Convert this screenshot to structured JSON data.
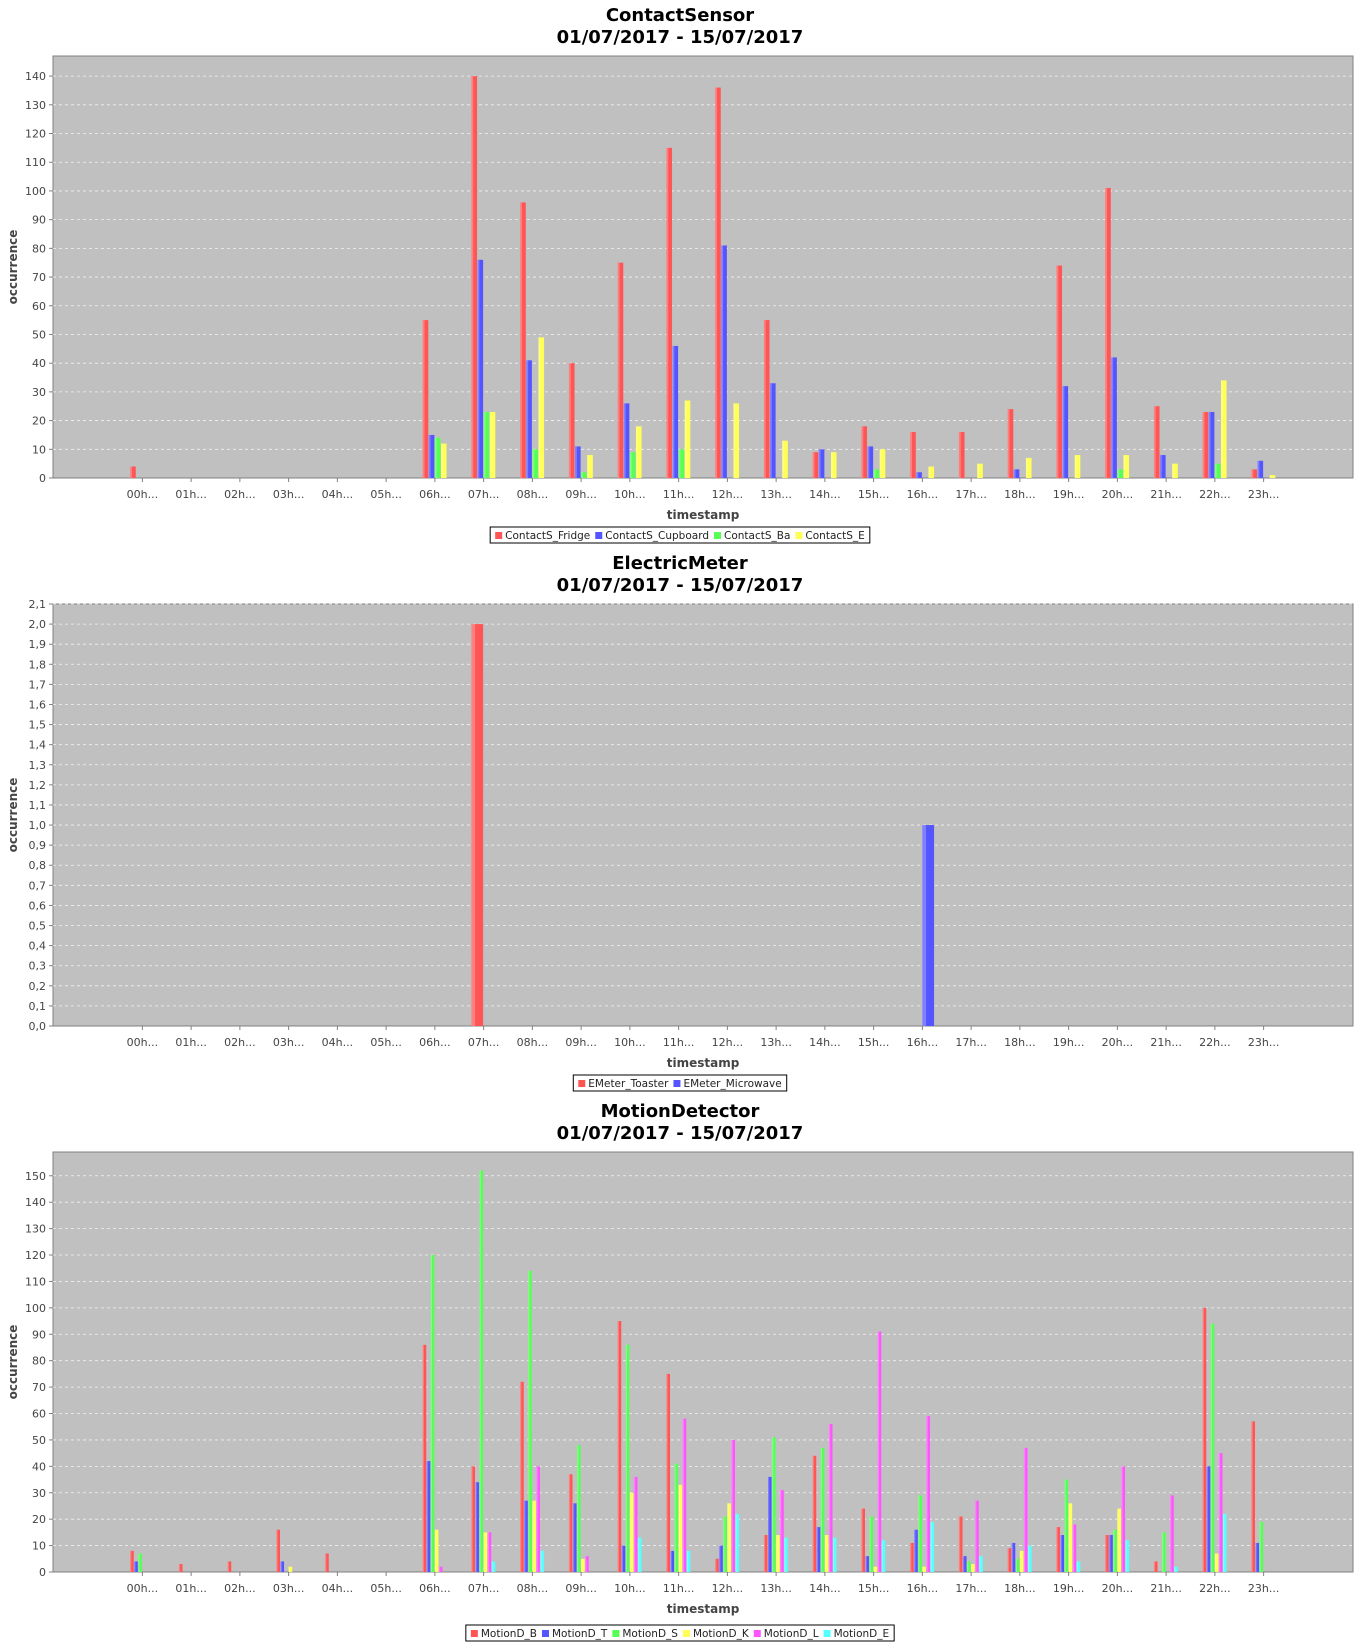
{
  "chart_data": [
    {
      "type": "bar",
      "title": "ContactSensor",
      "subtitle": "01/07/2017 - 15/07/2017",
      "xlabel": "timestamp",
      "ylabel": "occurrence",
      "ylim": [
        0,
        147
      ],
      "yticks": [
        0,
        10,
        20,
        30,
        40,
        50,
        60,
        70,
        80,
        90,
        100,
        110,
        120,
        130,
        140
      ],
      "ytick_labels": [
        "0",
        "10",
        "20",
        "30",
        "40",
        "50",
        "60",
        "70",
        "80",
        "90",
        "100",
        "110",
        "120",
        "130",
        "140"
      ],
      "grid": true,
      "legend_position": "bottom",
      "categories": [
        "00h...",
        "01h...",
        "02h...",
        "03h...",
        "04h...",
        "05h...",
        "06h...",
        "07h...",
        "08h...",
        "09h...",
        "10h...",
        "11h...",
        "12h...",
        "13h...",
        "14h...",
        "15h...",
        "16h...",
        "17h...",
        "18h...",
        "19h...",
        "20h...",
        "21h...",
        "22h...",
        "23h..."
      ],
      "series": [
        {
          "name": "ContactS_Fridge",
          "color": "#ff5555",
          "values": [
            4,
            0,
            0,
            0,
            0,
            0,
            55,
            140,
            96,
            40,
            75,
            115,
            136,
            55,
            9,
            18,
            16,
            16,
            24,
            74,
            101,
            25,
            23,
            3
          ]
        },
        {
          "name": "ContactS_Cupboard",
          "color": "#5555ff",
          "values": [
            0,
            0,
            0,
            0,
            0,
            0,
            15,
            76,
            41,
            11,
            26,
            46,
            81,
            33,
            10,
            11,
            2,
            0,
            3,
            32,
            42,
            8,
            23,
            6
          ]
        },
        {
          "name": "ContactS_Ba",
          "color": "#55ff55",
          "values": [
            0,
            0,
            0,
            0,
            0,
            0,
            14,
            23,
            10,
            2,
            9,
            10,
            0,
            0,
            0,
            3,
            0,
            0,
            0,
            0,
            3,
            0,
            5,
            0
          ]
        },
        {
          "name": "ContactS_E",
          "color": "#ffff55",
          "values": [
            0,
            0,
            0,
            0,
            0,
            0,
            12,
            23,
            49,
            8,
            18,
            27,
            26,
            13,
            9,
            10,
            4,
            5,
            7,
            8,
            8,
            5,
            34,
            1
          ]
        }
      ]
    },
    {
      "type": "bar",
      "title": "ElectricMeter",
      "subtitle": "01/07/2017 - 15/07/2017",
      "xlabel": "timestamp",
      "ylabel": "occurrence",
      "ylim": [
        0,
        2.1
      ],
      "yticks": [
        0,
        0.1,
        0.2,
        0.3,
        0.4,
        0.5,
        0.6,
        0.7,
        0.8,
        0.9,
        1.0,
        1.1,
        1.2,
        1.3,
        1.4,
        1.5,
        1.6,
        1.7,
        1.8,
        1.9,
        2.0,
        2.1
      ],
      "ytick_labels": [
        "0,0",
        "0,1",
        "0,2",
        "0,3",
        "0,4",
        "0,5",
        "0,6",
        "0,7",
        "0,8",
        "0,9",
        "1,0",
        "1,1",
        "1,2",
        "1,3",
        "1,4",
        "1,5",
        "1,6",
        "1,7",
        "1,8",
        "1,9",
        "2,0",
        "2,1"
      ],
      "grid": true,
      "legend_position": "bottom",
      "categories": [
        "00h...",
        "01h...",
        "02h...",
        "03h...",
        "04h...",
        "05h...",
        "06h...",
        "07h...",
        "08h...",
        "09h...",
        "10h...",
        "11h...",
        "12h...",
        "13h...",
        "14h...",
        "15h...",
        "16h...",
        "17h...",
        "18h...",
        "19h...",
        "20h...",
        "21h...",
        "22h...",
        "23h..."
      ],
      "series": [
        {
          "name": "EMeter_Toaster",
          "color": "#ff5555",
          "values": [
            0,
            0,
            0,
            0,
            0,
            0,
            0,
            2,
            0,
            0,
            0,
            0,
            0,
            0,
            0,
            0,
            0,
            0,
            0,
            0,
            0,
            0,
            0,
            0
          ]
        },
        {
          "name": "EMeter_Microwave",
          "color": "#5555ff",
          "values": [
            0,
            0,
            0,
            0,
            0,
            0,
            0,
            0,
            0,
            0,
            0,
            0,
            0,
            0,
            0,
            0,
            1,
            0,
            0,
            0,
            0,
            0,
            0,
            0
          ]
        }
      ]
    },
    {
      "type": "bar",
      "title": "MotionDetector",
      "subtitle": "01/07/2017 - 15/07/2017",
      "xlabel": "timestamp",
      "ylabel": "occurrence",
      "ylim": [
        0,
        159
      ],
      "yticks": [
        0,
        10,
        20,
        30,
        40,
        50,
        60,
        70,
        80,
        90,
        100,
        110,
        120,
        130,
        140,
        150
      ],
      "ytick_labels": [
        "0",
        "10",
        "20",
        "30",
        "40",
        "50",
        "60",
        "70",
        "80",
        "90",
        "100",
        "110",
        "120",
        "130",
        "140",
        "150"
      ],
      "grid": true,
      "legend_position": "bottom",
      "categories": [
        "00h...",
        "01h...",
        "02h...",
        "03h...",
        "04h...",
        "05h...",
        "06h...",
        "07h...",
        "08h...",
        "09h...",
        "10h...",
        "11h...",
        "12h...",
        "13h...",
        "14h...",
        "15h...",
        "16h...",
        "17h...",
        "18h...",
        "19h...",
        "20h...",
        "21h...",
        "22h...",
        "23h..."
      ],
      "series": [
        {
          "name": "MotionD_B",
          "color": "#ff5555",
          "values": [
            8,
            3,
            4,
            16,
            7,
            0,
            86,
            40,
            72,
            37,
            95,
            75,
            5,
            14,
            44,
            24,
            11,
            21,
            9,
            17,
            14,
            4,
            100,
            57
          ]
        },
        {
          "name": "MotionD_T",
          "color": "#5555ff",
          "values": [
            4,
            0,
            0,
            4,
            0,
            0,
            42,
            34,
            27,
            26,
            10,
            8,
            10,
            36,
            17,
            6,
            16,
            6,
            11,
            14,
            14,
            0,
            40,
            11
          ]
        },
        {
          "name": "MotionD_S",
          "color": "#55ff55",
          "values": [
            7,
            0,
            0,
            0,
            0,
            0,
            120,
            152,
            114,
            48,
            86,
            41,
            21,
            51,
            47,
            21,
            29,
            4,
            5,
            35,
            16,
            15,
            94,
            19
          ]
        },
        {
          "name": "MotionD_K",
          "color": "#ffff55",
          "values": [
            0,
            0,
            0,
            2,
            0,
            0,
            16,
            15,
            27,
            5,
            30,
            33,
            26,
            14,
            14,
            2,
            2,
            3,
            8,
            26,
            24,
            0,
            7,
            0
          ]
        },
        {
          "name": "MotionD_L",
          "color": "#ff55ff",
          "values": [
            0,
            0,
            0,
            0,
            0,
            0,
            2,
            15,
            40,
            6,
            36,
            58,
            50,
            31,
            56,
            91,
            59,
            27,
            47,
            18,
            40,
            29,
            45,
            0
          ]
        },
        {
          "name": "MotionD_E",
          "color": "#55ffff",
          "values": [
            0,
            0,
            0,
            0,
            0,
            0,
            0,
            4,
            8,
            0,
            13,
            8,
            22,
            13,
            13,
            12,
            19,
            6,
            10,
            4,
            12,
            2,
            22,
            0
          ]
        }
      ]
    }
  ]
}
